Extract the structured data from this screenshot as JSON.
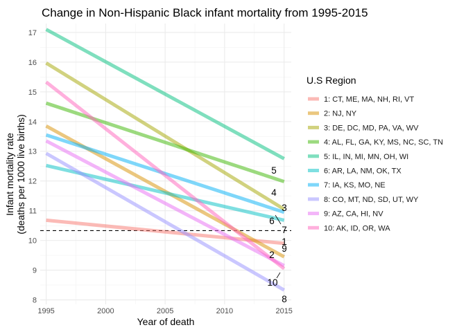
{
  "chart_data": {
    "type": "line",
    "title": "Change in Non-Hispanic Black infant mortality from 1995-2015",
    "xlabel": "Year of death",
    "ylabel_lines": [
      "Infant mortality rate",
      "(deaths per 1000 live births)"
    ],
    "x": [
      1995,
      2015
    ],
    "xticks": [
      1995,
      2000,
      2005,
      2010,
      2015
    ],
    "yticks": [
      8,
      9,
      10,
      11,
      12,
      13,
      14,
      15,
      16,
      17
    ],
    "xlim": [
      1994.5,
      2015.6
    ],
    "ylim": [
      7.85,
      17.3
    ],
    "grid": true,
    "reference_line": {
      "y": 10.33,
      "style": "dashed"
    },
    "legend": {
      "title": "U.S Region",
      "position": "right"
    },
    "series": [
      {
        "name": "1: CT, ME, MA, NH, RI, VT",
        "label": "1",
        "color": "#F8766D",
        "values": [
          10.68,
          9.9
        ]
      },
      {
        "name": "2: NJ, NY",
        "label": "2",
        "color": "#D89000",
        "values": [
          13.85,
          9.45
        ]
      },
      {
        "name": "3: DE, DC, MD, PA, VA, WV",
        "label": "3",
        "color": "#A3A500",
        "values": [
          15.97,
          11.05
        ]
      },
      {
        "name": "4: AL, FL, GA, KY, MS, NC, SC, TN",
        "label": "4",
        "color": "#39B600",
        "values": [
          14.62,
          11.98
        ]
      },
      {
        "name": "5: IL, IN, MI, MN, OH, WI",
        "label": "5",
        "color": "#00BF7D",
        "values": [
          17.1,
          12.75
        ]
      },
      {
        "name": "6: AR, LA, NM, OK, TX",
        "label": "6",
        "color": "#00BFC4",
        "values": [
          12.52,
          10.68
        ]
      },
      {
        "name": "7: IA, KS, MO, NE",
        "label": "7",
        "color": "#00B0F6",
        "values": [
          13.55,
          10.95
        ]
      },
      {
        "name": "8: CO, MT, ND, SD, UT, WY",
        "label": "8",
        "color": "#9590FF",
        "values": [
          12.93,
          8.33
        ]
      },
      {
        "name": "9: AZ, CA, HI, NV",
        "label": "9",
        "color": "#E76BF3",
        "values": [
          13.35,
          9.15
        ]
      },
      {
        "name": "10: AK, ID, OR, WA",
        "label": "10",
        "color": "#FF62BC",
        "values": [
          15.33,
          9.05
        ]
      }
    ]
  }
}
